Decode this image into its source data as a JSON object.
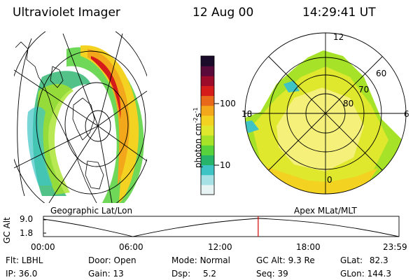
{
  "header": {
    "instrument": "Ultraviolet Imager",
    "date": "12 Aug 00",
    "time": "14:29:41 UT"
  },
  "colorbar": {
    "label_prefix": "photon cm",
    "label_exp1": "-2",
    "label_mid": "s",
    "label_exp2": "-1",
    "ticks": [
      "100",
      "10"
    ],
    "colors": [
      "#e8f4f4",
      "#a6e1e6",
      "#3fc4c6",
      "#27b36a",
      "#57d13c",
      "#a6e228",
      "#dfe82c",
      "#f4d222",
      "#f2a81a",
      "#e8691a",
      "#d61b1b",
      "#9c0c2a",
      "#5a0a3a",
      "#1a0b2a"
    ]
  },
  "panels": {
    "left_caption": "Geographic Lat/Lon",
    "right_caption": "Apex MLat/MLT",
    "mlat_labels": [
      "60",
      "70",
      "80"
    ],
    "mlt_labels": {
      "top": "12",
      "left": "18",
      "right": "6",
      "bottom": "0"
    }
  },
  "altitude_plot": {
    "axis_label": "GC Alt",
    "y_ticks": [
      "9.0",
      "1.8"
    ],
    "x_ticks": [
      "00:00",
      "06:00",
      "12:00",
      "18:00",
      "23:59"
    ],
    "marker_time_fraction": 0.604,
    "marker_color": "#d40000"
  },
  "status": {
    "row1": [
      {
        "label": "Flt:",
        "value": "LBHL"
      },
      {
        "label": "Door:",
        "value": "Open"
      },
      {
        "label": "Mode:",
        "value": "Normal"
      },
      {
        "label": "GC Alt:",
        "value": "9.3 Re"
      },
      {
        "label": "GLat:",
        "value": "82.3"
      }
    ],
    "row2": [
      {
        "label": "IP:",
        "value": "36.0"
      },
      {
        "label": "Gain:",
        "value": "13"
      },
      {
        "label": "Dsp:",
        "value": "5.2"
      },
      {
        "label": "Seq:",
        "value": "39"
      },
      {
        "label": "GLon:",
        "value": "144.3"
      }
    ]
  }
}
